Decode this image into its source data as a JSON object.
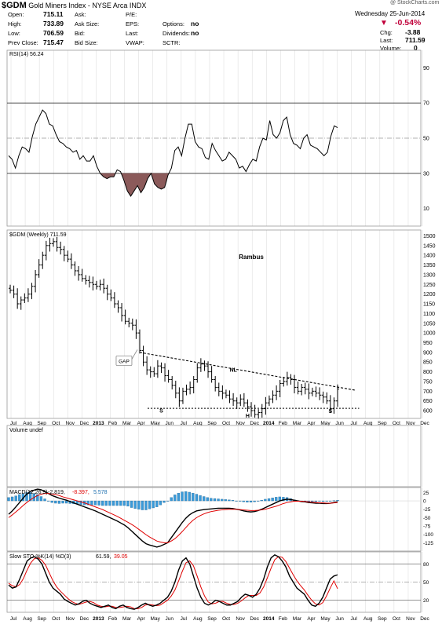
{
  "header": {
    "symbol": "$GDM",
    "name": "Gold Miners Index - NYSE Arca INDX",
    "date_line": "Wednesday  25-Jun-2014",
    "watermark": "@ StockCharts.com",
    "quote": [
      {
        "label": "Open:",
        "value": "715.11"
      },
      {
        "label": "High:",
        "value": "733.89"
      },
      {
        "label": "Low:",
        "value": "706.59"
      },
      {
        "label": "Prev Close:",
        "value": "715.47"
      }
    ],
    "quote_mid": [
      "Ask:",
      "Ask Size:",
      "Bid:",
      "Bid Size:"
    ],
    "quote_right": [
      {
        "label": "P/E:",
        "value": ""
      },
      {
        "label": "EPS:",
        "value": ""
      },
      {
        "label": "Last:",
        "value": ""
      },
      {
        "label": "VWAP:",
        "value": ""
      }
    ],
    "quote_extra": [
      {
        "label": "Options:",
        "value": "no"
      },
      {
        "label": "Dividends:",
        "value": "no"
      },
      {
        "label": "SCTR:",
        "value": ""
      }
    ],
    "change_pct": "-0.54%",
    "change_arrow": "▼",
    "last_stats": [
      {
        "label": "Chg:",
        "value": "-3.88"
      },
      {
        "label": "Last:",
        "value": "711.59"
      },
      {
        "label": "Volume:",
        "value": "0"
      }
    ]
  },
  "chart_data": [
    {
      "type": "area",
      "name": "rsi-panel",
      "legend": "RSI(14) 56.24",
      "ylim": [
        0,
        100
      ],
      "yticks": [
        10,
        30,
        50,
        70,
        90
      ],
      "reference_lines": {
        "upper": 70,
        "mid": 50,
        "lower": 30
      },
      "fill_below": {
        "level": 30,
        "color": "#8b5a5a"
      },
      "values": [
        40,
        38,
        33,
        40,
        45,
        44,
        42,
        51,
        58,
        62,
        66,
        64,
        58,
        57,
        52,
        48,
        47,
        45,
        44,
        42,
        43,
        38,
        40,
        37,
        37,
        40,
        34,
        30,
        28,
        27,
        28,
        28,
        32,
        31,
        26,
        20,
        17,
        20,
        23,
        19,
        22,
        27,
        30,
        24,
        22,
        21,
        22,
        29,
        33,
        43,
        45,
        40,
        50,
        58,
        58,
        48,
        45,
        44,
        39,
        38,
        47,
        43,
        40,
        37,
        38,
        42,
        40,
        38,
        33,
        34,
        31,
        35,
        38,
        37,
        45,
        50,
        49,
        60,
        52,
        50,
        53,
        60,
        62,
        52,
        47,
        46,
        44,
        50,
        52,
        46,
        45,
        44,
        42,
        40,
        42,
        51,
        57,
        56
      ]
    },
    {
      "type": "candlestick",
      "name": "price-panel",
      "legend": "$GDM (Weekly) 711.59",
      "title": "Rambus",
      "ylim": [
        560,
        1530
      ],
      "yticks": [
        600,
        650,
        700,
        750,
        800,
        850,
        900,
        950,
        1000,
        1050,
        1100,
        1150,
        1200,
        1250,
        1300,
        1350,
        1400,
        1450,
        1500
      ],
      "close": [
        1220,
        1200,
        1150,
        1170,
        1180,
        1200,
        1240,
        1300,
        1350,
        1400,
        1450,
        1460,
        1470,
        1440,
        1430,
        1400,
        1380,
        1350,
        1320,
        1300,
        1280,
        1270,
        1260,
        1250,
        1240,
        1250,
        1230,
        1200,
        1180,
        1150,
        1130,
        1090,
        1060,
        1050,
        1040,
        1000,
        910,
        850,
        810,
        800,
        790,
        830,
        820,
        780,
        760,
        730,
        690,
        650,
        700,
        710,
        720,
        760,
        820,
        840,
        830,
        800,
        760,
        720,
        700,
        690,
        680,
        660,
        650,
        640,
        660,
        640,
        620,
        600,
        580,
        590,
        610,
        640,
        660,
        680,
        700,
        740,
        750,
        770,
        760,
        720,
        700,
        720,
        710,
        690,
        700,
        690,
        680,
        670,
        650,
        610,
        650,
        711
      ],
      "annotations": [
        {
          "text": "GAP",
          "at_index": 36,
          "value": 930
        },
        {
          "text": "NL",
          "at_index": 62,
          "value": 800
        },
        {
          "text": "S",
          "at_index": 42,
          "value": 590
        },
        {
          "text": "H",
          "at_index": 66,
          "value": 565
        },
        {
          "text": "S",
          "at_index": 89,
          "value": 588
        }
      ],
      "neckline": {
        "from": {
          "index": 36,
          "value": 900
        },
        "to": {
          "index": 96,
          "value": 705
        }
      },
      "support": {
        "from_index": 36,
        "to_index": 97,
        "value": 612
      }
    },
    {
      "type": "bar",
      "name": "volume-panel",
      "legend": "Volume undef",
      "values": []
    },
    {
      "type": "line",
      "name": "macd-panel",
      "legend": "MACD(12,26,9) -2.819, -8.397, 5.578",
      "ylim": [
        -150,
        40
      ],
      "yticks": [
        25,
        0,
        -25,
        -50,
        -75,
        -100,
        -125
      ],
      "series": [
        {
          "name": "MACD(12,26,9)",
          "color": "#000000",
          "values": [
            -40,
            -30,
            -18,
            -5,
            8,
            20,
            28,
            32,
            35,
            33,
            28,
            22,
            16,
            12,
            8,
            5,
            2,
            -2,
            -6,
            -10,
            -14,
            -18,
            -22,
            -26,
            -30,
            -35,
            -40,
            -45,
            -50,
            -55,
            -60,
            -66,
            -72,
            -80,
            -90,
            -100,
            -110,
            -120,
            -128,
            -132,
            -135,
            -138,
            -135,
            -130,
            -125,
            -110,
            -95,
            -80,
            -65,
            -52,
            -42,
            -35,
            -30,
            -28,
            -26,
            -25,
            -24,
            -23,
            -22,
            -22,
            -22,
            -22,
            -23,
            -25,
            -27,
            -30,
            -32,
            -33,
            -32,
            -29,
            -25,
            -20,
            -15,
            -10,
            -5,
            0,
            3,
            5,
            4,
            2,
            0,
            -2,
            -3,
            -5,
            -6,
            -7,
            -7,
            -8,
            -8,
            -7,
            -5,
            -3
          ]
        },
        {
          "name": "Signal",
          "color": "#e00000",
          "values": [
            -50,
            -42,
            -33,
            -24,
            -14,
            -5,
            3,
            10,
            16,
            20,
            22,
            22,
            21,
            19,
            16,
            12,
            9,
            6,
            3,
            0,
            -3,
            -6,
            -10,
            -14,
            -18,
            -22,
            -26,
            -31,
            -36,
            -41,
            -46,
            -52,
            -58,
            -64,
            -70,
            -77,
            -85,
            -93,
            -101,
            -108,
            -114,
            -120,
            -123,
            -125,
            -125,
            -120,
            -113,
            -103,
            -92,
            -80,
            -68,
            -58,
            -50,
            -44,
            -39,
            -35,
            -32,
            -30,
            -28,
            -27,
            -26,
            -25,
            -25,
            -25,
            -26,
            -27,
            -28,
            -29,
            -29,
            -28,
            -27,
            -25,
            -22,
            -19,
            -16,
            -12,
            -8,
            -5,
            -3,
            -1,
            -1,
            -1,
            -2,
            -3,
            -4,
            -5,
            -6,
            -6,
            -7,
            -7,
            -6,
            -5
          ]
        }
      ],
      "histogram_color": "#3a9ad9"
    },
    {
      "type": "line",
      "name": "sto-panel",
      "legend": "Slow STO %K(14) %D(3) 61.59, 39.05",
      "ylim": [
        0,
        100
      ],
      "yticks": [
        20,
        50,
        80
      ],
      "reference_lines": {
        "upper": 80,
        "mid": 50,
        "lower": 20
      },
      "series": [
        {
          "name": "%K(14)",
          "color": "#000000",
          "values": [
            45,
            40,
            42,
            55,
            70,
            85,
            90,
            92,
            88,
            80,
            65,
            50,
            40,
            35,
            30,
            22,
            18,
            15,
            12,
            14,
            18,
            20,
            15,
            12,
            10,
            8,
            10,
            12,
            8,
            6,
            10,
            12,
            8,
            6,
            5,
            8,
            12,
            15,
            12,
            10,
            12,
            15,
            20,
            25,
            35,
            50,
            70,
            85,
            90,
            80,
            60,
            40,
            25,
            15,
            12,
            15,
            20,
            18,
            15,
            12,
            12,
            15,
            18,
            25,
            30,
            28,
            25,
            30,
            40,
            55,
            75,
            90,
            95,
            92,
            85,
            75,
            60,
            50,
            40,
            35,
            30,
            20,
            12,
            10,
            15,
            25,
            40,
            55,
            60,
            62
          ]
        },
        {
          "name": "%D(3)",
          "color": "#e00000",
          "values": [
            48,
            44,
            42,
            46,
            56,
            70,
            82,
            89,
            90,
            86,
            78,
            65,
            52,
            42,
            35,
            29,
            23,
            18,
            15,
            13,
            15,
            17,
            18,
            16,
            12,
            10,
            9,
            10,
            10,
            8,
            8,
            9,
            10,
            9,
            6,
            6,
            8,
            12,
            13,
            12,
            11,
            12,
            16,
            20,
            27,
            37,
            52,
            68,
            82,
            85,
            77,
            60,
            42,
            27,
            17,
            14,
            15,
            18,
            18,
            15,
            13,
            13,
            15,
            19,
            24,
            28,
            28,
            28,
            32,
            42,
            57,
            73,
            87,
            92,
            91,
            84,
            73,
            62,
            52,
            44,
            37,
            28,
            20,
            14,
            12,
            16,
            27,
            40,
            52,
            39
          ]
        }
      ]
    }
  ],
  "x_axis": {
    "labels": [
      "Jul",
      "Aug",
      "Sep",
      "Oct",
      "Nov",
      "Dec",
      "2013",
      "Feb",
      "Mar",
      "Apr",
      "May",
      "Jun",
      "Jul",
      "Aug",
      "Sep",
      "Oct",
      "Nov",
      "Dec",
      "2014",
      "Feb",
      "Mar",
      "Apr",
      "May",
      "Jun",
      "Jul",
      "Aug",
      "Sep",
      "Oct",
      "Nov",
      "Dec"
    ],
    "bold": [
      "2013",
      "2014"
    ]
  },
  "colors": {
    "grid": "#d8d8d8",
    "dashed_ref": "#999999",
    "rsi_fill": "#8b5a5a",
    "macd_hist": "#3a9ad9",
    "change_down": "#c0003a"
  }
}
